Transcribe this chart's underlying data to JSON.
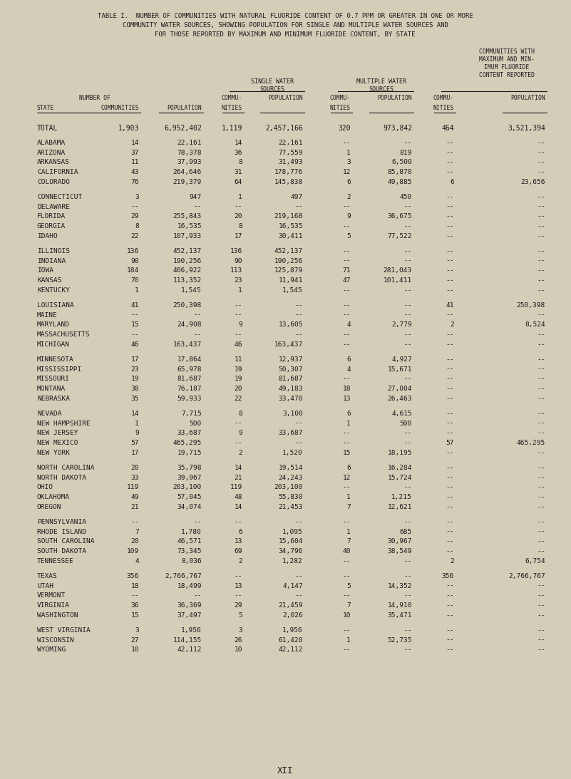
{
  "title_lines": [
    "TABLE I.  NUMBER OF COMMUNITIES WITH NATURAL FLUORIDE CONTENT OF 0.7 PPM OR GREATER IN ONE OR MORE",
    "COMMUNITY WATER SOURCES, SHOWING POPULATION FOR SINGLE AND MULTIPLE WATER SOURCES AND",
    "FOR THOSE REPORTED BY MAXIMUM AND MINIMUM FLUORIDE CONTENT, BY STATE"
  ],
  "bg_color": "#d4cdb8",
  "text_color": "#1a1a1a",
  "rows": [
    [
      "TOTAL",
      "1,903",
      "6,952,402",
      "1,119",
      "2,457,166",
      "320",
      "973,842",
      "464",
      "3,521,394"
    ],
    [
      "ALABAMA",
      "14",
      "22,161",
      "14",
      "22,161",
      "--",
      "--",
      "--",
      "--"
    ],
    [
      "ARIZONA",
      "37",
      "78,378",
      "36",
      "77,559",
      "1",
      "819",
      "--",
      "--"
    ],
    [
      "ARKANSAS",
      "11",
      "37,993",
      "8",
      "31,493",
      "3",
      "6,500",
      "--",
      "--"
    ],
    [
      "CALIFORNIA",
      "43",
      "264,646",
      "31",
      "178,776",
      "12",
      "85,870",
      "--",
      "--"
    ],
    [
      "COLORADO",
      "76",
      "219,379",
      "64",
      "145,838",
      "6",
      "49,885",
      "6",
      "23,656"
    ],
    [
      "CONNECTICUT",
      "3",
      "947",
      "1",
      "497",
      "2",
      "450",
      "--",
      "--"
    ],
    [
      "DELAWARE",
      "--",
      "--",
      "--",
      "--",
      "--",
      "--",
      "--",
      "--"
    ],
    [
      "FLORIDA",
      "29",
      "255,843",
      "20",
      "219,168",
      "9",
      "36,675",
      "--",
      "--"
    ],
    [
      "GEORGIA",
      "8",
      "16,535",
      "8",
      "16,535",
      "--",
      "--",
      "--",
      "--"
    ],
    [
      "IDAHO",
      "22",
      "107,933",
      "17",
      "30,411",
      "5",
      "77,522",
      "--",
      "--"
    ],
    [
      "ILLINOIS",
      "136",
      "452,137",
      "136",
      "452,137",
      "--",
      "--",
      "--",
      "--"
    ],
    [
      "INDIANA",
      "90",
      "190,256",
      "90",
      "190,256",
      "--",
      "--",
      "--",
      "--"
    ],
    [
      "IOWA",
      "184",
      "406,922",
      "113",
      "125,879",
      "71",
      "281,043",
      "--",
      "--"
    ],
    [
      "KANSAS",
      "70",
      "113,352",
      "23",
      "11,941",
      "47",
      "101,411",
      "--",
      "--"
    ],
    [
      "KENTUCKY",
      "1",
      "1,545",
      "1",
      "1,545",
      "--",
      "--",
      "--",
      "--"
    ],
    [
      "LOUISIANA",
      "41",
      "250,398",
      "--",
      "--",
      "--",
      "--",
      "41",
      "250,398"
    ],
    [
      "MAINE",
      "--",
      "--",
      "--",
      "--",
      "--",
      "--",
      "--",
      "--"
    ],
    [
      "MARYLAND",
      "15",
      "24,908",
      "9",
      "13,605",
      "4",
      "2,779",
      "2",
      "8,524"
    ],
    [
      "MASSACHUSETTS",
      "--",
      "--",
      "--",
      "--",
      "--",
      "--",
      "--",
      "--"
    ],
    [
      "MICHIGAN",
      "46",
      "163,437",
      "46",
      "163,437",
      "--",
      "--",
      "--",
      "--"
    ],
    [
      "MINNESOTA",
      "17",
      "17,864",
      "11",
      "12,937",
      "6",
      "4,927",
      "--",
      "--"
    ],
    [
      "MISSISSIPPI",
      "23",
      "65,978",
      "19",
      "50,307",
      "4",
      "15,671",
      "--",
      "--"
    ],
    [
      "MISSOURI",
      "19",
      "81,687",
      "19",
      "81,687",
      "--",
      "--",
      "--",
      "--"
    ],
    [
      "MONTANA",
      "38",
      "76,187",
      "20",
      "49,183",
      "18",
      "27,004",
      "--",
      "--"
    ],
    [
      "NEBRASKA",
      "35",
      "59,933",
      "22",
      "33,470",
      "13",
      "26,463",
      "--",
      "--"
    ],
    [
      "NEVADA",
      "14",
      "7,715",
      "8",
      "3,100",
      "6",
      "4,615",
      "--",
      "--"
    ],
    [
      "NEW HAMPSHIRE",
      "1",
      "500",
      "--",
      "--",
      "1",
      "500",
      "--",
      "--"
    ],
    [
      "NEW JERSEY",
      "9",
      "33,687",
      "9",
      "33,687",
      "--",
      "--",
      "--",
      "--"
    ],
    [
      "NEW MEXICO",
      "57",
      "465,295",
      "--",
      "--",
      "--",
      "--",
      "57",
      "465,295"
    ],
    [
      "NEW YORK",
      "17",
      "19,715",
      "2",
      "1,520",
      "15",
      "18,195",
      "--",
      "--"
    ],
    [
      "NORTH CAROLINA",
      "20",
      "35,798",
      "14",
      "19,514",
      "6",
      "16,284",
      "--",
      "--"
    ],
    [
      "NORTH DAKOTA",
      "33",
      "39,967",
      "21",
      "24,243",
      "12",
      "15,724",
      "--",
      "--"
    ],
    [
      "OHIO",
      "119",
      "203,100",
      "119",
      "203,100",
      "--",
      "--",
      "--",
      "--"
    ],
    [
      "OKLAHOMA",
      "49",
      "57,045",
      "48",
      "55,830",
      "1",
      "1,215",
      "--",
      "--"
    ],
    [
      "OREGON",
      "21",
      "34,074",
      "14",
      "21,453",
      "7",
      "12,621",
      "--",
      "--"
    ],
    [
      "PENNSYLVANIA",
      "--",
      "--",
      "--",
      "--",
      "--",
      "--",
      "--",
      "--"
    ],
    [
      "RHODE ISLAND",
      "7",
      "1,780",
      "6",
      "1,095",
      "1",
      "685",
      "--",
      "--"
    ],
    [
      "SOUTH CAROLINA",
      "20",
      "46,571",
      "13",
      "15,604",
      "7",
      "30,967",
      "--",
      "--"
    ],
    [
      "SOUTH DAKOTA",
      "109",
      "73,345",
      "69",
      "34,796",
      "40",
      "38,549",
      "--",
      "--"
    ],
    [
      "TENNESSEE",
      "4",
      "8,036",
      "2",
      "1,282",
      "--",
      "--",
      "2",
      "6,754"
    ],
    [
      "TEXAS",
      "356",
      "2,766,767",
      "--",
      "--",
      "--",
      "--",
      "356",
      "2,766,767"
    ],
    [
      "UTAH",
      "18",
      "18,499",
      "13",
      "4,147",
      "5",
      "14,352",
      "--",
      "--"
    ],
    [
      "VERMONT",
      "--",
      "--",
      "--",
      "--",
      "--",
      "--",
      "--",
      "--"
    ],
    [
      "VIRGINIA",
      "36",
      "36,369",
      "29",
      "21,459",
      "7",
      "14,910",
      "--",
      "--"
    ],
    [
      "WASHINGTON",
      "15",
      "37,497",
      "5",
      "2,026",
      "10",
      "35,471",
      "--",
      "--"
    ],
    [
      "WEST VIRGINIA",
      "3",
      "1,956",
      "3",
      "1,956",
      "--",
      "--",
      "--",
      "--"
    ],
    [
      "WISCONSIN",
      "27",
      "114,155",
      "26",
      "61,420",
      "1",
      "52,735",
      "--",
      "--"
    ],
    [
      "WYOMING",
      "10",
      "42,112",
      "10",
      "42,112",
      "--",
      "--",
      "--",
      "--"
    ]
  ],
  "group_breaks_after": [
    0,
    5,
    10,
    15,
    20,
    25,
    30,
    35,
    40,
    45
  ],
  "footer": "XII"
}
